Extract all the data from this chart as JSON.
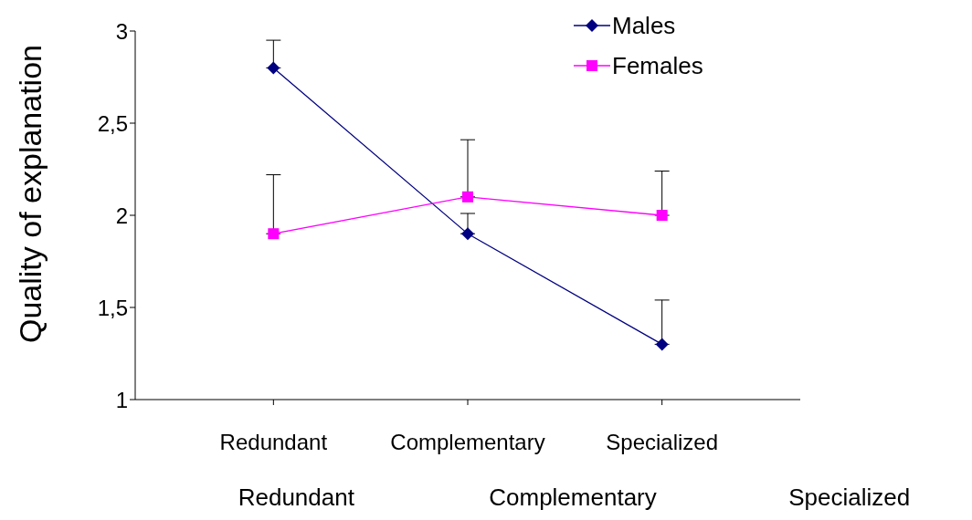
{
  "chart_data": {
    "type": "line",
    "ylabel": "Quality of explanation",
    "categories": [
      "Redundant",
      "Complementary",
      "Specialized"
    ],
    "series": [
      {
        "name": "Males",
        "color": "#000080",
        "marker": "diamond",
        "values": [
          2.8,
          1.9,
          1.3
        ],
        "errors": [
          [
            2.8,
            2.95
          ],
          [
            1.9,
            2.01
          ],
          [
            1.3,
            1.54
          ]
        ]
      },
      {
        "name": "Females",
        "color": "#ff00ff",
        "marker": "square",
        "values": [
          1.9,
          2.1,
          2.0
        ],
        "errors": [
          [
            1.9,
            2.22
          ],
          [
            2.1,
            2.41
          ],
          [
            2.0,
            2.24
          ]
        ]
      }
    ],
    "ylim": [
      1,
      3
    ],
    "yticks": [
      1,
      {
        "value": 1.5,
        "label": "1,5"
      },
      2,
      {
        "value": 2.5,
        "label": "2,5"
      },
      3
    ],
    "grid": false,
    "legend": "top right",
    "annotations": [
      "Redundant",
      "Complementary",
      "Specialized"
    ]
  }
}
